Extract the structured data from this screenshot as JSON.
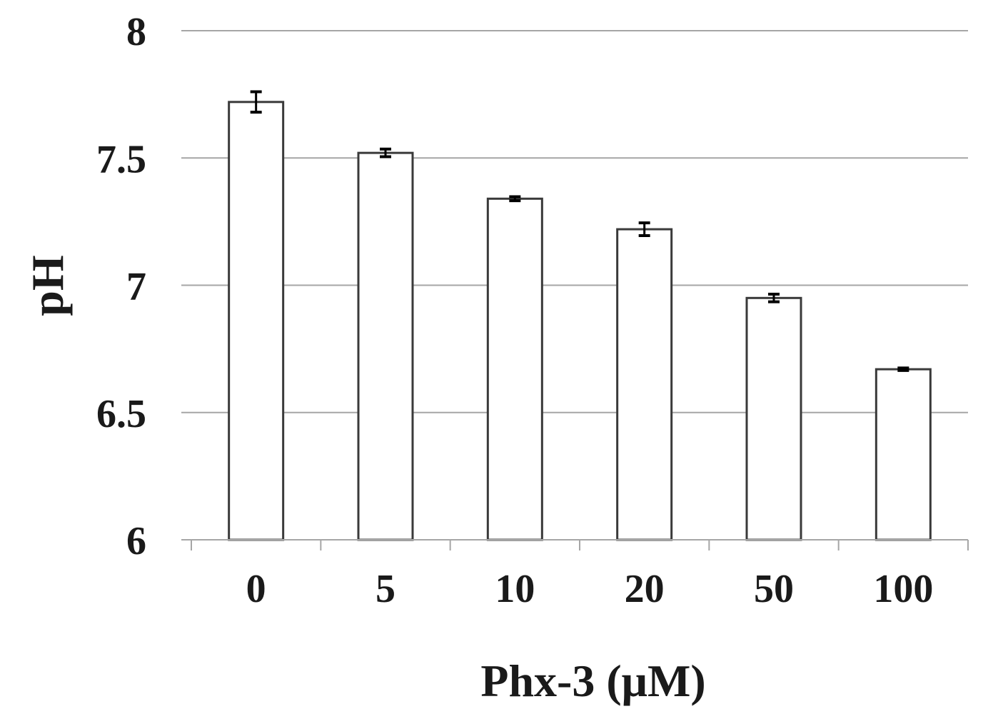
{
  "chart_data": {
    "type": "bar",
    "title": "",
    "xlabel": "Phx-3 (μM)",
    "ylabel": "pH",
    "categories": [
      "0",
      "5",
      "10",
      "20",
      "50",
      "100"
    ],
    "series": [
      {
        "values": [
          7.72,
          7.52,
          7.34,
          7.22,
          6.95,
          6.67
        ],
        "errors": [
          0.04,
          0.015,
          0.008,
          0.025,
          0.015,
          0.005
        ]
      }
    ],
    "ylim": [
      6,
      8
    ],
    "yticks": [
      "6",
      "6.5",
      "7",
      "7.5",
      "8"
    ],
    "grid": "horizontal",
    "legend": "none",
    "colors": {
      "bar_fill": "#ffffff",
      "bar_stroke": "#3a3a3a",
      "grid": "#a6a6a6",
      "error_bar": "#000000"
    }
  }
}
